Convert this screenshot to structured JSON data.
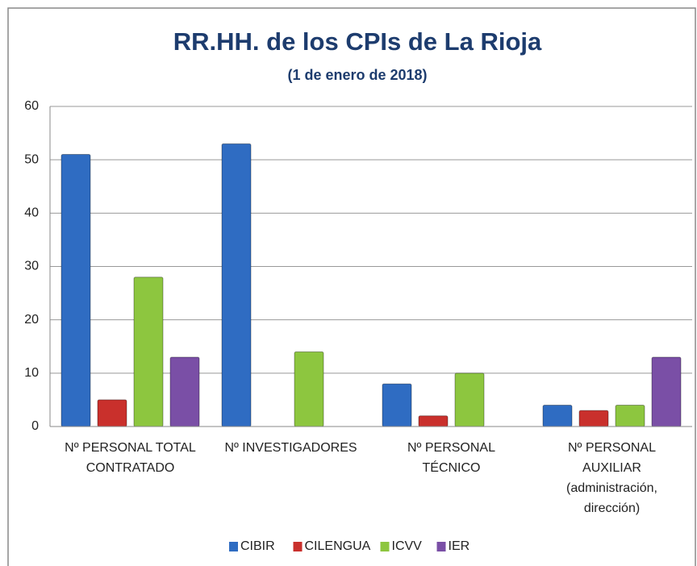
{
  "chart_data": {
    "type": "bar",
    "title": "RR.HH. de los CPIs de La Rioja",
    "subtitle": "(1 de enero de 2018)",
    "categories": [
      "Nº PERSONAL TOTAL\nCONTRATADO",
      "Nº INVESTIGADORES",
      "Nº PERSONAL\nTÉCNICO",
      "Nº PERSONAL\nAUXILIAR\n(administración,\ndirección)"
    ],
    "series": [
      {
        "name": "CIBIR",
        "color": "#2f6cc2",
        "values": [
          51,
          53,
          8,
          4
        ]
      },
      {
        "name": "CILENGUA",
        "color": "#c9302c",
        "values": [
          5,
          0,
          2,
          3
        ]
      },
      {
        "name": "ICVV",
        "color": "#8dc63f",
        "values": [
          28,
          14,
          10,
          4
        ]
      },
      {
        "name": "IER",
        "color": "#7a4fa6",
        "values": [
          13,
          0,
          0,
          13
        ]
      }
    ],
    "ylim": [
      0,
      60
    ],
    "yticks": [
      0,
      10,
      20,
      30,
      40,
      50,
      60
    ],
    "grid": true,
    "legend": "bottom"
  }
}
